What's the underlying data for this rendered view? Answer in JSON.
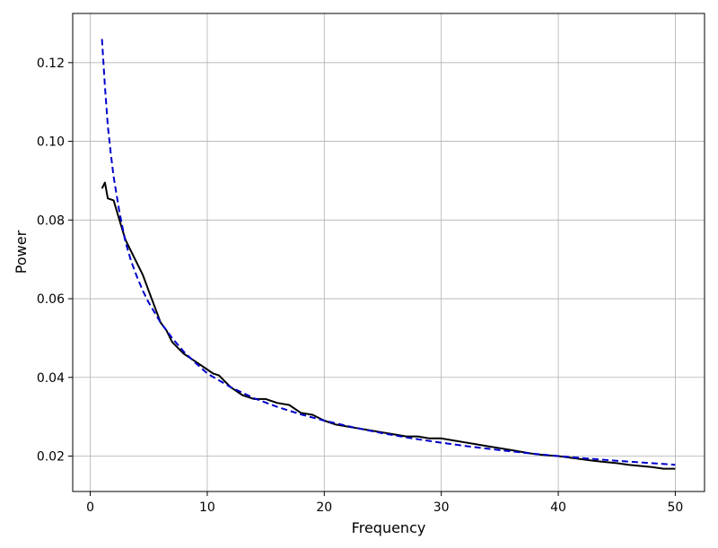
{
  "chart_data": {
    "type": "line",
    "title": "",
    "xlabel": "Frequency",
    "ylabel": "Power",
    "xlim": [
      -1.5,
      52.5
    ],
    "ylim": [
      0.011,
      0.1325
    ],
    "xticks": [
      0,
      10,
      20,
      30,
      40,
      50
    ],
    "yticks": [
      0.02,
      0.04,
      0.06,
      0.08,
      0.1,
      0.12
    ],
    "xtick_labels": [
      "0",
      "10",
      "20",
      "30",
      "40",
      "50"
    ],
    "ytick_labels": [
      "0.02",
      "0.04",
      "0.06",
      "0.08",
      "0.10",
      "0.12"
    ],
    "grid": true,
    "series": [
      {
        "style": "solid",
        "color": "#000000",
        "x": [
          1.0,
          1.25,
          1.5,
          2.0,
          2.5,
          3.0,
          3.5,
          4.0,
          4.5,
          5.0,
          5.5,
          6.0,
          6.5,
          7.0,
          7.5,
          8.0,
          8.5,
          9.0,
          9.5,
          10.0,
          10.5,
          11.0,
          11.5,
          12.0,
          13.0,
          14.0,
          15.0,
          16.0,
          17.0,
          18.0,
          19.0,
          20.0,
          21.0,
          22.0,
          23.0,
          24.0,
          25.0,
          26.0,
          27.0,
          28.0,
          29.0,
          30.0,
          31.0,
          32.0,
          33.0,
          34.0,
          35.0,
          36.0,
          37.0,
          38.0,
          39.0,
          40.0,
          41.0,
          42.0,
          43.0,
          44.0,
          45.0,
          46.0,
          47.0,
          48.0,
          49.0,
          50.0
        ],
        "y": [
          0.088,
          0.0895,
          0.0855,
          0.085,
          0.08,
          0.075,
          0.072,
          0.069,
          0.066,
          0.062,
          0.058,
          0.054,
          0.052,
          0.049,
          0.0475,
          0.046,
          0.045,
          0.044,
          0.043,
          0.042,
          0.041,
          0.0405,
          0.039,
          0.0375,
          0.0355,
          0.0345,
          0.0345,
          0.0335,
          0.033,
          0.031,
          0.0305,
          0.029,
          0.028,
          0.0275,
          0.027,
          0.0265,
          0.026,
          0.0255,
          0.025,
          0.025,
          0.0245,
          0.0245,
          0.024,
          0.0235,
          0.023,
          0.0225,
          0.022,
          0.0215,
          0.021,
          0.0205,
          0.0202,
          0.02,
          0.0196,
          0.0192,
          0.0188,
          0.0185,
          0.0182,
          0.0178,
          0.0175,
          0.0172,
          0.0168,
          0.0168
        ]
      },
      {
        "style": "dashed",
        "color": "#0000cc",
        "x": [
          1.0,
          1.25,
          1.5,
          1.75,
          2.0,
          2.5,
          3.0,
          3.5,
          4.0,
          4.5,
          5.0,
          6.0,
          7.0,
          8.0,
          9.0,
          10.0,
          12.0,
          14.0,
          16.0,
          18.0,
          20.0,
          22.5,
          25.0,
          27.5,
          30.0,
          32.5,
          35.0,
          37.5,
          40.0,
          42.5,
          45.0,
          47.5,
          50.0
        ],
        "y": [
          0.126,
          0.114,
          0.104,
          0.097,
          0.091,
          0.082,
          0.0745,
          0.0695,
          0.0655,
          0.062,
          0.059,
          0.054,
          0.05,
          0.0465,
          0.0437,
          0.041,
          0.0375,
          0.0347,
          0.0325,
          0.0306,
          0.029,
          0.0273,
          0.0258,
          0.0245,
          0.0234,
          0.0224,
          0.0215,
          0.0207,
          0.02,
          0.0194,
          0.0188,
          0.0183,
          0.0178
        ]
      }
    ]
  }
}
